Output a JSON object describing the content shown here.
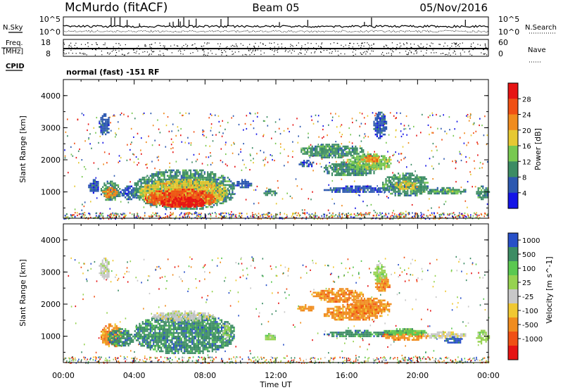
{
  "header": {
    "station": "McMurdo (fitACF)",
    "beam": "Beam 05",
    "date": "05/Nov/2016"
  },
  "side_labels": {
    "nsky": "N.Sky",
    "nsearch": "N.Search",
    "freq": "Freq.",
    "freq_unit": "[MHz]",
    "cpid": "CPID",
    "nave": "Nave"
  },
  "mode_text": "normal (fast) -151 RF",
  "noise_ticks_left": [
    "10^5",
    "10^0"
  ],
  "noise_ticks_right": [
    "10^5",
    "10^0"
  ],
  "freq_ticks": [
    "18",
    "8"
  ],
  "nave_ticks": [
    "60",
    "0"
  ],
  "colors": {
    "power_scale": [
      "#1414e6",
      "#2c58b0",
      "#3c8c64",
      "#78c850",
      "#e6c832",
      "#f08c1e",
      "#f05014",
      "#e61414"
    ],
    "velocity_scale": [
      "#2850c8",
      "#3c8c64",
      "#5ac850",
      "#96d250",
      "#c8c8c8",
      "#f0c832",
      "#f08c1e",
      "#f05014",
      "#e61414"
    ],
    "ground_scatter": "#b4b4b4"
  },
  "chart_data": [
    {
      "type": "heatmap",
      "panel": "power",
      "xlabel": "",
      "ylabel": "Slant Range [km]",
      "yticks": [
        "1000",
        "2000",
        "3000",
        "4000"
      ],
      "ylim": [
        180,
        4500
      ],
      "xlim_hours": [
        0,
        24
      ],
      "colorbar_title": "Power [dB]",
      "colorbar_ticks": [
        "4",
        "8",
        "12",
        "16",
        "20",
        "24",
        "28"
      ],
      "colorbar_range": [
        0,
        32
      ],
      "regions": [
        {
          "t": [
            2.1,
            3.2
          ],
          "r": [
            750,
            1350
          ],
          "c": 2
        },
        {
          "t": [
            2.2,
            3.0
          ],
          "r": [
            850,
            1150
          ],
          "c": 5
        },
        {
          "t": [
            3.2,
            4.2
          ],
          "r": [
            800,
            1200
          ],
          "c": 1
        },
        {
          "t": [
            4.0,
            9.6
          ],
          "r": [
            500,
            1700
          ],
          "c": 2
        },
        {
          "t": [
            4.3,
            9.2
          ],
          "r": [
            600,
            1400
          ],
          "c": 4
        },
        {
          "t": [
            4.6,
            8.6
          ],
          "r": [
            550,
            1100
          ],
          "c": 6
        },
        {
          "t": [
            5.5,
            8.0
          ],
          "r": [
            550,
            850
          ],
          "c": 7
        },
        {
          "t": [
            1.4,
            2.0
          ],
          "r": [
            1000,
            1400
          ],
          "c": 1
        },
        {
          "t": [
            9.7,
            10.6
          ],
          "r": [
            1150,
            1400
          ],
          "c": 1
        },
        {
          "t": [
            11.3,
            12.0
          ],
          "r": [
            900,
            1100
          ],
          "c": 2
        },
        {
          "t": [
            13.2,
            14.1
          ],
          "r": [
            1800,
            2000
          ],
          "c": 1
        },
        {
          "t": [
            13.4,
            16.9
          ],
          "r": [
            2100,
            2500
          ],
          "c": 2
        },
        {
          "t": [
            14.7,
            17.6
          ],
          "r": [
            1500,
            1950
          ],
          "c": 2
        },
        {
          "t": [
            16.0,
            18.5
          ],
          "r": [
            1700,
            2200
          ],
          "c": 3
        },
        {
          "t": [
            16.8,
            17.8
          ],
          "r": [
            1950,
            2150
          ],
          "c": 5
        },
        {
          "t": [
            14.7,
            18.5
          ],
          "r": [
            1000,
            1200
          ],
          "c": 1
        },
        {
          "t": [
            18.0,
            20.6
          ],
          "r": [
            900,
            1600
          ],
          "c": 2
        },
        {
          "t": [
            18.7,
            20.0
          ],
          "r": [
            1100,
            1350
          ],
          "c": 4
        },
        {
          "t": [
            20.3,
            22.7
          ],
          "r": [
            950,
            1150
          ],
          "c": 2
        },
        {
          "t": [
            20.8,
            22.3
          ],
          "r": [
            1000,
            1100
          ],
          "c": 3
        },
        {
          "t": [
            17.5,
            18.2
          ],
          "r": [
            2700,
            3500
          ],
          "c": 1
        },
        {
          "t": [
            2.0,
            2.6
          ],
          "r": [
            2800,
            3450
          ],
          "c": 1
        },
        {
          "t": [
            23.3,
            24.0
          ],
          "r": [
            800,
            1200
          ],
          "c": 2
        }
      ],
      "speckle_bands": [
        {
          "t": [
            0,
            24
          ],
          "r": [
            180,
            380
          ],
          "n": 700
        },
        {
          "t": [
            0,
            24
          ],
          "r": [
            2700,
            3500
          ],
          "n": 220
        },
        {
          "t": [
            0,
            24
          ],
          "r": [
            1800,
            2600
          ],
          "n": 160
        },
        {
          "t": [
            0,
            24
          ],
          "r": [
            380,
            3000
          ],
          "n": 260
        }
      ]
    },
    {
      "type": "heatmap",
      "panel": "velocity",
      "xlabel": "Time UT",
      "ylabel": "Slant Range [km]",
      "xticks": [
        "00:00",
        "04:00",
        "08:00",
        "12:00",
        "16:00",
        "20:00",
        "00:00"
      ],
      "yticks": [
        "1000",
        "2000",
        "3000",
        "4000"
      ],
      "ylim": [
        180,
        4500
      ],
      "xlim_hours": [
        0,
        24
      ],
      "colorbar_title": "Velocity [m s^-1]",
      "colorbar_ticks": [
        "1000",
        "500",
        "100",
        "25",
        "-25",
        "-100",
        "-500",
        "-1000"
      ],
      "regions": [
        {
          "t": [
            2.1,
            3.3
          ],
          "r": [
            700,
            1400
          ],
          "c": 6
        },
        {
          "t": [
            2.5,
            4.0
          ],
          "r": [
            700,
            1250
          ],
          "c": 1
        },
        {
          "t": [
            4.0,
            9.6
          ],
          "r": [
            500,
            1700
          ],
          "c": 1
        },
        {
          "t": [
            5.0,
            8.5
          ],
          "r": [
            1500,
            1800
          ],
          "c": 4
        },
        {
          "t": [
            9.0,
            9.4
          ],
          "r": [
            900,
            1400
          ],
          "c": 3
        },
        {
          "t": [
            13.2,
            14.1
          ],
          "r": [
            1800,
            2000
          ],
          "c": 6
        },
        {
          "t": [
            14.0,
            16.9
          ],
          "r": [
            2100,
            2500
          ],
          "c": 6
        },
        {
          "t": [
            14.7,
            18.0
          ],
          "r": [
            1500,
            2000
          ],
          "c": 6
        },
        {
          "t": [
            16.0,
            18.5
          ],
          "r": [
            1700,
            2200
          ],
          "c": 6
        },
        {
          "t": [
            17.6,
            18.4
          ],
          "r": [
            2400,
            2900
          ],
          "c": 6
        },
        {
          "t": [
            14.7,
            18.5
          ],
          "r": [
            1000,
            1200
          ],
          "c": 1
        },
        {
          "t": [
            18.0,
            20.6
          ],
          "r": [
            900,
            1200
          ],
          "c": 6
        },
        {
          "t": [
            18.0,
            20.5
          ],
          "r": [
            1050,
            1250
          ],
          "c": 2
        },
        {
          "t": [
            20.3,
            22.7
          ],
          "r": [
            950,
            1150
          ],
          "c": 4
        },
        {
          "t": [
            21.5,
            22.5
          ],
          "r": [
            800,
            1000
          ],
          "c": 0
        },
        {
          "t": [
            11.3,
            12.0
          ],
          "r": [
            900,
            1100
          ],
          "c": 3
        },
        {
          "t": [
            2.0,
            2.6
          ],
          "r": [
            2800,
            3450
          ],
          "c": 4
        },
        {
          "t": [
            17.5,
            18.2
          ],
          "r": [
            2700,
            3300
          ],
          "c": 3
        },
        {
          "t": [
            23.3,
            24.0
          ],
          "r": [
            800,
            1200
          ],
          "c": 3
        }
      ],
      "speckle_bands": [
        {
          "t": [
            0,
            24
          ],
          "r": [
            180,
            380
          ],
          "n": 500
        },
        {
          "t": [
            0,
            24
          ],
          "r": [
            2700,
            3500
          ],
          "n": 180
        },
        {
          "t": [
            0,
            24
          ],
          "r": [
            380,
            3000
          ],
          "n": 200
        }
      ]
    }
  ]
}
